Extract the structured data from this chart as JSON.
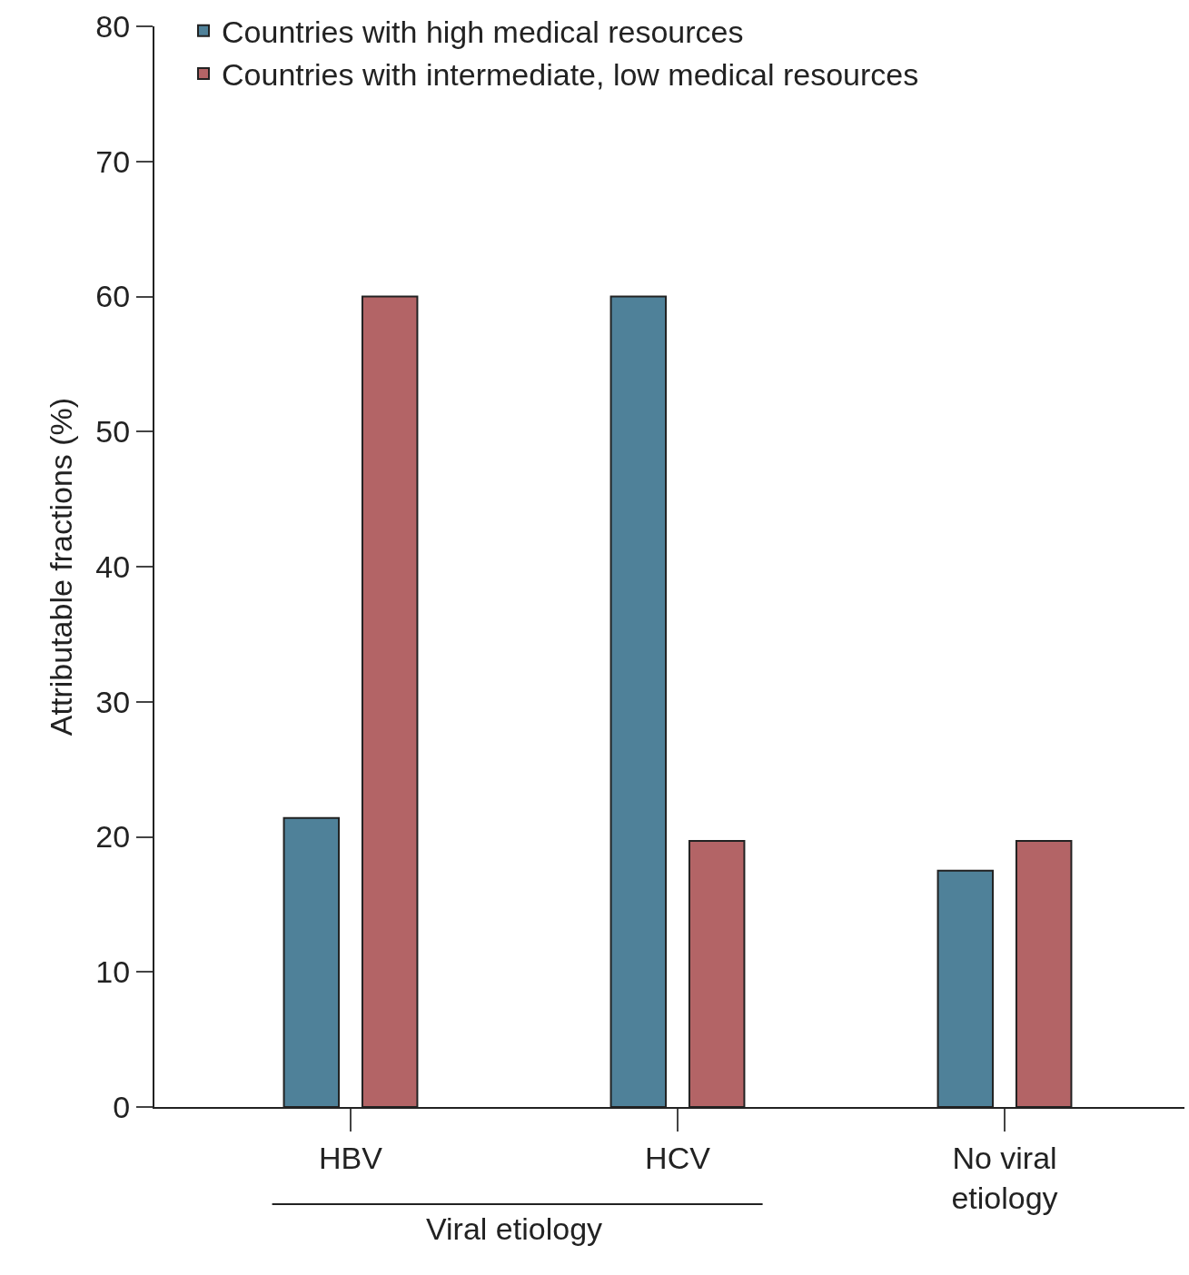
{
  "chart_data": {
    "type": "bar",
    "ylabel": "Attributable fractions (%)",
    "categories": [
      "HBV",
      "HCV",
      "No viral\netiology"
    ],
    "series": [
      {
        "name": "Countries with high medical resources",
        "color": "#4f8199",
        "values": [
          21.4,
          60,
          17.5
        ]
      },
      {
        "name": "Countries with intermediate, low medical resources",
        "color": "#b36466",
        "values": [
          60,
          19.7,
          19.7
        ]
      }
    ],
    "ylim": [
      0,
      80
    ],
    "yticks": [
      0,
      10,
      20,
      30,
      40,
      50,
      60,
      70,
      80
    ],
    "legend": "top left",
    "annotations": [
      "Viral etiology"
    ]
  }
}
